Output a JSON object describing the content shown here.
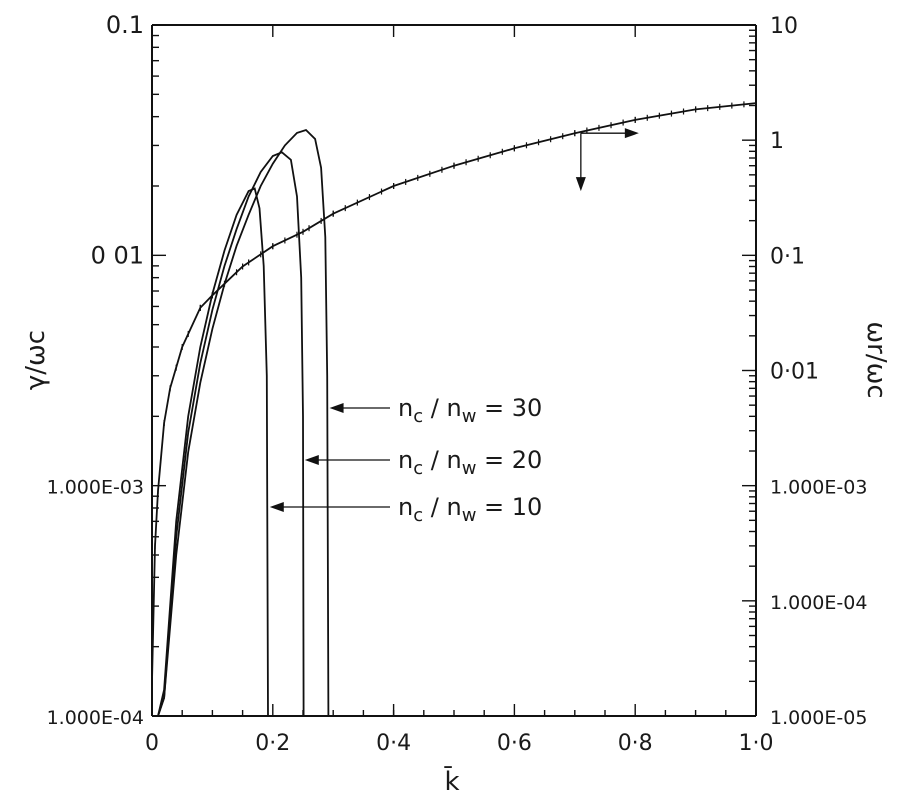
{
  "chart_data": {
    "type": "line",
    "xlabel": "k̄",
    "ylabel_left": "γ/ωc",
    "ylabel_right": "ωr/ωc",
    "xlim": [
      0,
      1.0
    ],
    "ylim_left": [
      0.0001,
      0.1
    ],
    "ylim_right": [
      1e-05,
      10
    ],
    "yscale_left": "log",
    "yscale_right": "log",
    "x_ticks": [
      "0",
      "0·2",
      "0·4",
      "0·6",
      "0·8",
      "1·0"
    ],
    "y_ticks_left": [
      "0.1",
      "0 01",
      "1.000E-03",
      "1.000E-04"
    ],
    "y_ticks_right": [
      "10",
      "1",
      "0·1",
      "0·01",
      "1.000E-03",
      "1.000E-04",
      "1.000E-05"
    ],
    "series": [
      {
        "label": "nc / nw = 30",
        "axis": "left",
        "points": [
          [
            0.01,
            0.0001
          ],
          [
            0.02,
            0.00012
          ],
          [
            0.04,
            0.0005
          ],
          [
            0.06,
            0.0014
          ],
          [
            0.08,
            0.0028
          ],
          [
            0.1,
            0.0048
          ],
          [
            0.12,
            0.0075
          ],
          [
            0.14,
            0.011
          ],
          [
            0.16,
            0.015
          ],
          [
            0.18,
            0.02
          ],
          [
            0.2,
            0.025
          ],
          [
            0.22,
            0.03
          ],
          [
            0.24,
            0.034
          ],
          [
            0.255,
            0.035
          ],
          [
            0.27,
            0.032
          ],
          [
            0.28,
            0.024
          ],
          [
            0.287,
            0.012
          ],
          [
            0.29,
            0.003
          ],
          [
            0.292,
            0.0001
          ]
        ]
      },
      {
        "label": "nc / nw = 20",
        "axis": "left",
        "points": [
          [
            0.01,
            0.0001
          ],
          [
            0.02,
            0.00012
          ],
          [
            0.04,
            0.0006
          ],
          [
            0.06,
            0.0017
          ],
          [
            0.08,
            0.0034
          ],
          [
            0.1,
            0.0058
          ],
          [
            0.12,
            0.009
          ],
          [
            0.14,
            0.013
          ],
          [
            0.16,
            0.018
          ],
          [
            0.18,
            0.023
          ],
          [
            0.2,
            0.027
          ],
          [
            0.215,
            0.028
          ],
          [
            0.23,
            0.026
          ],
          [
            0.24,
            0.018
          ],
          [
            0.247,
            0.008
          ],
          [
            0.25,
            0.002
          ],
          [
            0.251,
            0.0001
          ]
        ]
      },
      {
        "label": "nc / nw = 10",
        "axis": "left",
        "points": [
          [
            0.01,
            0.0001
          ],
          [
            0.02,
            0.00013
          ],
          [
            0.04,
            0.0007
          ],
          [
            0.06,
            0.002
          ],
          [
            0.08,
            0.004
          ],
          [
            0.1,
            0.0068
          ],
          [
            0.12,
            0.0105
          ],
          [
            0.14,
            0.015
          ],
          [
            0.16,
            0.019
          ],
          [
            0.17,
            0.0195
          ],
          [
            0.178,
            0.016
          ],
          [
            0.185,
            0.009
          ],
          [
            0.19,
            0.003
          ],
          [
            0.192,
            0.0001
          ]
        ]
      },
      {
        "label": "ωr/ωc",
        "axis": "right",
        "points": [
          [
            0.0,
            2e-05
          ],
          [
            0.005,
            0.0003
          ],
          [
            0.01,
            0.0009
          ],
          [
            0.02,
            0.0035
          ],
          [
            0.03,
            0.007
          ],
          [
            0.05,
            0.016
          ],
          [
            0.08,
            0.035
          ],
          [
            0.1,
            0.045
          ],
          [
            0.15,
            0.08
          ],
          [
            0.2,
            0.12
          ],
          [
            0.25,
            0.16
          ],
          [
            0.3,
            0.23
          ],
          [
            0.4,
            0.4
          ],
          [
            0.5,
            0.6
          ],
          [
            0.6,
            0.85
          ],
          [
            0.7,
            1.15
          ],
          [
            0.8,
            1.5
          ],
          [
            0.9,
            1.85
          ],
          [
            1.0,
            2.1
          ]
        ]
      }
    ],
    "annotations": {
      "labels": [
        {
          "target": "nc / nw = 30",
          "prefix": "n",
          "sub1": "c",
          "mid": " / n",
          "sub2": "w",
          "suffix": " = 30"
        },
        {
          "target": "nc / nw = 20",
          "prefix": "n",
          "sub1": "c",
          "mid": " / n",
          "sub2": "w",
          "suffix": " = 20"
        },
        {
          "target": "nc / nw = 10",
          "prefix": "n",
          "sub1": "c",
          "mid": " / n",
          "sub2": "w",
          "suffix": " = 10"
        }
      ],
      "axis_pointer": "right-axis curve"
    },
    "grid": false,
    "color": "#111111"
  }
}
